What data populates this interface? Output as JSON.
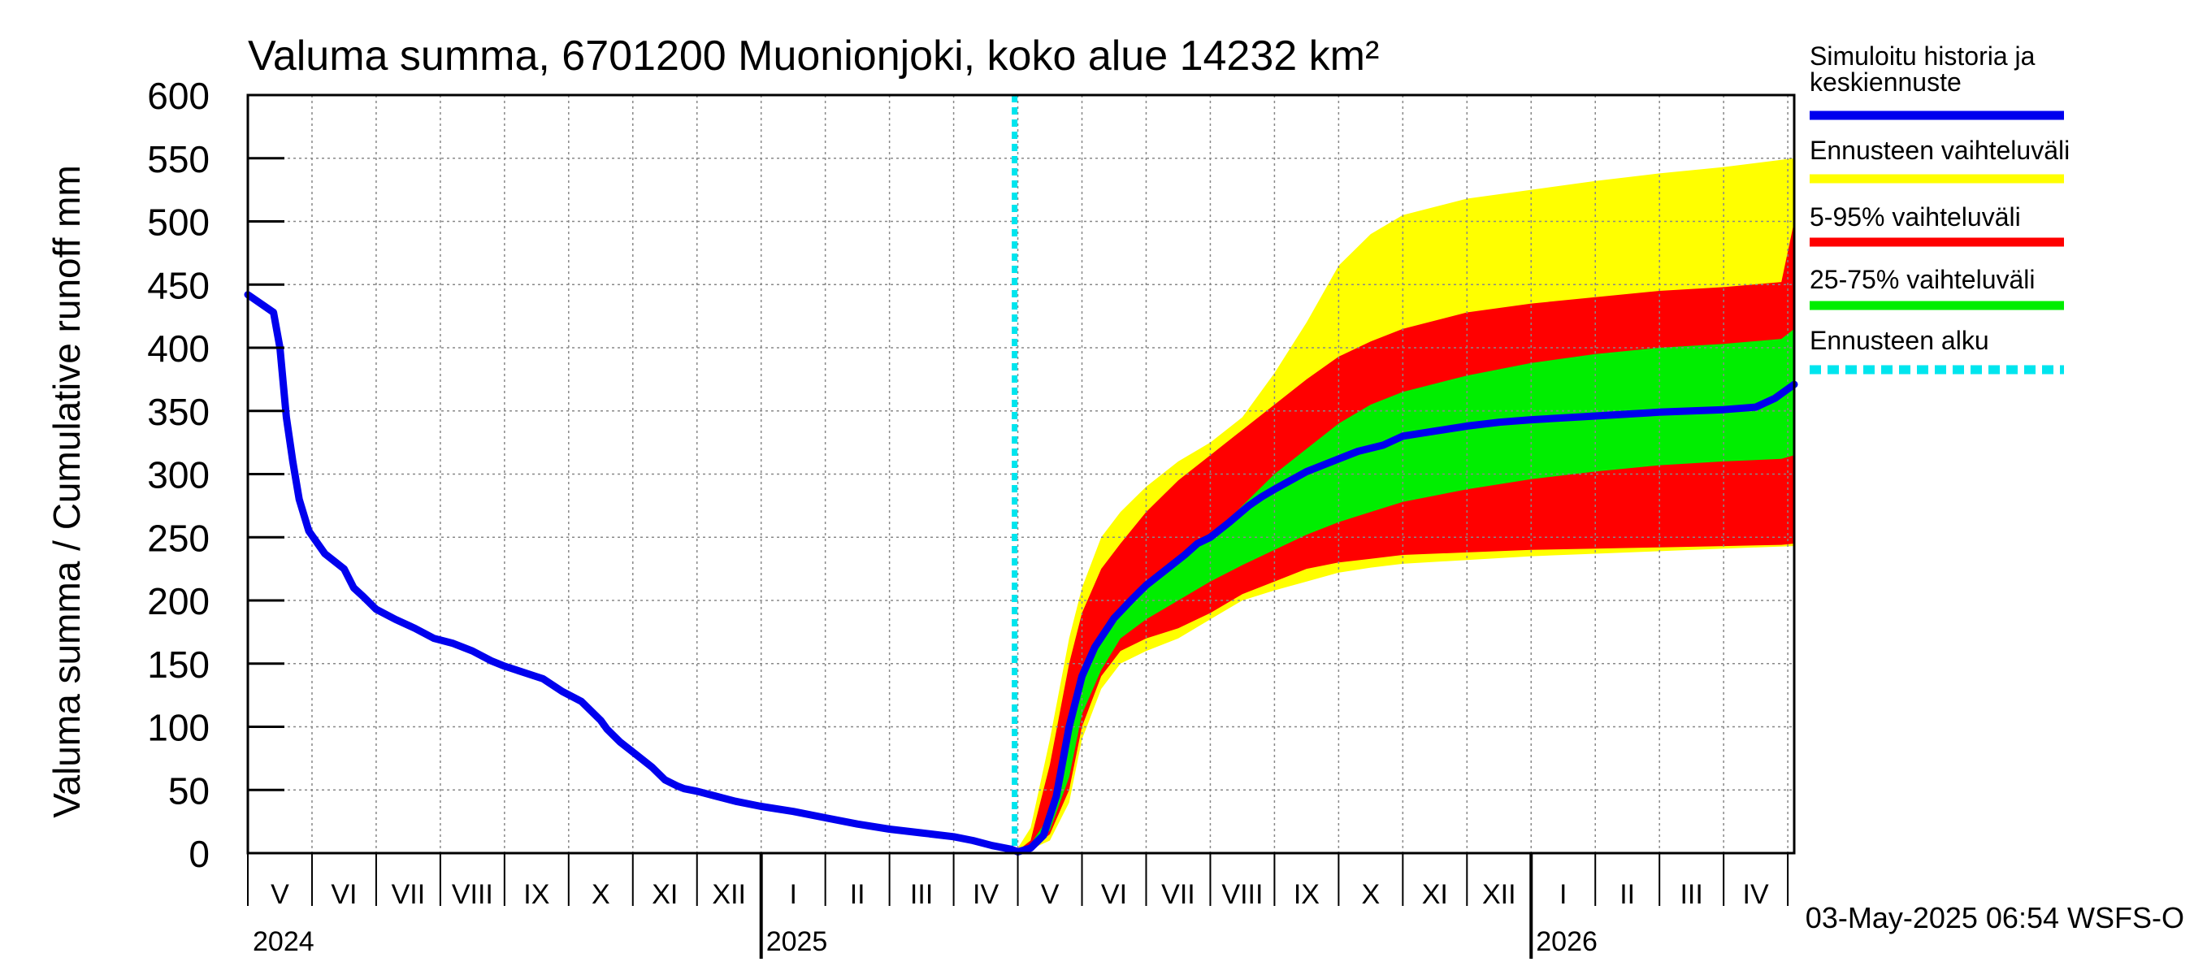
{
  "chart_data": {
    "type": "area",
    "title": "Valuma summa, 6701200 Muonionjoki, koko alue 14232 km²",
    "ylabel": "Valuma summa / Cumulative runoff    mm",
    "ylim": [
      0,
      600
    ],
    "yticks": [
      0,
      50,
      100,
      150,
      200,
      250,
      300,
      350,
      400,
      450,
      500,
      550,
      600
    ],
    "x_unit": "months since 2024-04-27",
    "xlim": [
      0,
      24.1
    ],
    "forecast_start": 11.95,
    "month_labels": [
      {
        "label": "V",
        "x": 0.5
      },
      {
        "label": "VI",
        "x": 1.5
      },
      {
        "label": "VII",
        "x": 2.5
      },
      {
        "label": "VIII",
        "x": 3.5
      },
      {
        "label": "IX",
        "x": 4.5
      },
      {
        "label": "X",
        "x": 5.5
      },
      {
        "label": "XI",
        "x": 6.5
      },
      {
        "label": "XII",
        "x": 7.5
      },
      {
        "label": "I",
        "x": 8.5
      },
      {
        "label": "II",
        "x": 9.5
      },
      {
        "label": "III",
        "x": 10.5
      },
      {
        "label": "IV",
        "x": 11.5
      },
      {
        "label": "V",
        "x": 12.5
      },
      {
        "label": "VI",
        "x": 13.5
      },
      {
        "label": "VII",
        "x": 14.5
      },
      {
        "label": "VIII",
        "x": 15.5
      },
      {
        "label": "IX",
        "x": 16.5
      },
      {
        "label": "X",
        "x": 17.5
      },
      {
        "label": "XI",
        "x": 18.5
      },
      {
        "label": "XII",
        "x": 19.5
      },
      {
        "label": "I",
        "x": 20.5
      },
      {
        "label": "II",
        "x": 21.5
      },
      {
        "label": "III",
        "x": 22.5
      },
      {
        "label": "IV",
        "x": 23.5
      }
    ],
    "year_labels": [
      {
        "label": "2024",
        "x": 0
      },
      {
        "label": "2025",
        "x": 8
      },
      {
        "label": "2026",
        "x": 20
      }
    ],
    "year_boundaries": [
      8,
      20
    ],
    "series": [
      {
        "name": "Simuloitu historia ja keskiennuste",
        "color": "#0000ee",
        "x": [
          0,
          0.4,
          0.5,
          0.6,
          0.7,
          0.8,
          0.95,
          1.2,
          1.5,
          1.65,
          1.8,
          2.0,
          2.3,
          2.6,
          2.9,
          3.2,
          3.5,
          3.8,
          4.0,
          4.3,
          4.6,
          4.9,
          5.2,
          5.5,
          5.6,
          5.8,
          6.0,
          6.3,
          6.5,
          6.7,
          6.8,
          7.0,
          7.3,
          7.6,
          8.0,
          8.5,
          9.0,
          9.5,
          10.0,
          10.5,
          11.0,
          11.3,
          11.6,
          11.9,
          12.0,
          12.2,
          12.4,
          12.6,
          12.8,
          13.0,
          13.2,
          13.5,
          13.8,
          14.0,
          14.3,
          14.6,
          14.8,
          15.0,
          15.3,
          15.6,
          15.8,
          16.0,
          16.5,
          17.0,
          17.3,
          17.7,
          18.0,
          18.5,
          19.0,
          19.5,
          20.0,
          21.0,
          22.0,
          23.0,
          23.5,
          23.8,
          24.1
        ],
        "values": [
          442,
          428,
          400,
          345,
          310,
          280,
          255,
          237,
          225,
          210,
          203,
          193,
          185,
          178,
          170,
          166,
          160,
          152,
          148,
          143,
          138,
          128,
          120,
          105,
          98,
          88,
          80,
          68,
          58,
          53,
          51,
          49,
          45,
          41,
          37,
          33,
          28,
          23,
          19,
          16,
          13,
          10,
          6,
          3,
          1,
          4,
          14,
          45,
          100,
          140,
          163,
          186,
          202,
          212,
          224,
          236,
          245,
          250,
          262,
          275,
          282,
          288,
          302,
          312,
          318,
          323,
          330,
          334,
          338,
          341,
          343,
          346,
          349,
          351,
          353,
          360,
          371
        ]
      },
      {
        "name": "Ennusteen vaihteluväli",
        "color": "#ffff00",
        "x": [
          11.95,
          12.2,
          12.5,
          12.8,
          13.0,
          13.3,
          13.6,
          14.0,
          14.5,
          15.0,
          15.5,
          16.0,
          16.5,
          17.0,
          17.5,
          18.0,
          19.0,
          20.0,
          21.0,
          22.0,
          23.0,
          24.1
        ],
        "upper": [
          0,
          20,
          90,
          170,
          210,
          250,
          270,
          290,
          310,
          325,
          345,
          380,
          420,
          465,
          490,
          505,
          518,
          525,
          532,
          538,
          543,
          550
        ],
        "lower": [
          0,
          3,
          10,
          40,
          90,
          130,
          150,
          160,
          170,
          185,
          200,
          208,
          215,
          222,
          226,
          229,
          232,
          235,
          237,
          239,
          241,
          243
        ]
      },
      {
        "name": "5-95% vaihteluväli",
        "color": "#ff0000",
        "x": [
          11.95,
          12.2,
          12.5,
          12.8,
          13.0,
          13.3,
          13.6,
          14.0,
          14.5,
          15.0,
          15.5,
          16.0,
          16.5,
          17.0,
          17.5,
          18.0,
          19.0,
          20.0,
          21.0,
          22.0,
          23.0,
          23.9,
          24.1
        ],
        "upper": [
          0,
          10,
          70,
          150,
          190,
          225,
          245,
          270,
          295,
          315,
          335,
          355,
          375,
          393,
          405,
          415,
          428,
          435,
          440,
          445,
          448,
          452,
          500
        ],
        "lower": [
          0,
          3,
          15,
          50,
          100,
          140,
          160,
          170,
          178,
          190,
          205,
          215,
          225,
          230,
          233,
          236,
          238,
          240,
          241,
          242,
          243,
          244,
          245
        ]
      },
      {
        "name": "25-75% vaihteluväli",
        "color": "#00ee00",
        "x": [
          11.95,
          12.2,
          12.5,
          12.8,
          13.0,
          13.3,
          13.6,
          14.0,
          14.5,
          15.0,
          15.5,
          16.0,
          16.5,
          17.0,
          17.5,
          18.0,
          19.0,
          20.0,
          21.0,
          22.0,
          23.0,
          23.9,
          24.1
        ],
        "upper": [
          0,
          7,
          30,
          90,
          140,
          175,
          195,
          212,
          232,
          250,
          275,
          300,
          320,
          340,
          355,
          365,
          378,
          388,
          395,
          400,
          403,
          407,
          415
        ],
        "lower": [
          0,
          3,
          18,
          60,
          110,
          145,
          170,
          185,
          200,
          215,
          228,
          240,
          252,
          262,
          270,
          278,
          288,
          296,
          302,
          307,
          310,
          312,
          315
        ]
      }
    ],
    "legend": [
      {
        "label": "Simuloitu historia ja\nkeskiennuste",
        "color": "#0000ee",
        "style": "solid"
      },
      {
        "label": "Ennusteen vaihteluväli",
        "color": "#ffff00",
        "style": "solid"
      },
      {
        "label": "5-95% vaihteluväli",
        "color": "#ff0000",
        "style": "solid"
      },
      {
        "label": "25-75% vaihteluväli",
        "color": "#00ee00",
        "style": "solid"
      },
      {
        "label": "Ennusteen alku",
        "color": "#00e5ee",
        "style": "dashed"
      }
    ],
    "legend_position": "right",
    "grid": true,
    "footer": "03-May-2025 06:54 WSFS-O"
  }
}
